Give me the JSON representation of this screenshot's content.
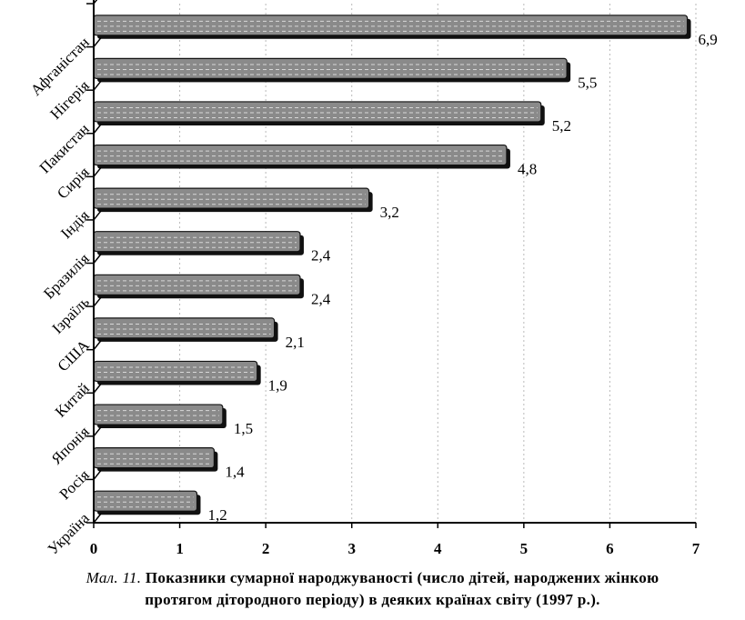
{
  "chart_data": {
    "type": "bar",
    "orientation": "horizontal",
    "categories": [
      "Афганістан",
      "Нігерія",
      "Пакистан",
      "Сирія",
      "Індія",
      "Бразилія",
      "Ізраїль",
      "США",
      "Китай",
      "Японія",
      "Росія",
      "Україна"
    ],
    "values": [
      6.9,
      5.5,
      5.2,
      4.8,
      3.2,
      2.4,
      2.4,
      2.1,
      1.9,
      1.5,
      1.4,
      1.2
    ],
    "value_labels": [
      "6,9",
      "5,5",
      "5,2",
      "4,8",
      "3,2",
      "2,4",
      "2,4",
      "2,1",
      "1,9",
      "1,5",
      "1,4",
      "1,2"
    ],
    "x_ticks": [
      "0",
      "1",
      "2",
      "3",
      "4",
      "5",
      "6",
      "7"
    ],
    "xlim": [
      0,
      7
    ],
    "grid": true,
    "title": "",
    "xlabel": "",
    "ylabel": "",
    "bar_color": "#8a8a8a",
    "shadow_color": "#111111"
  },
  "caption": {
    "figure_number": "Мал. 11.",
    "text_line1": "Показники сумарної народжуваності (число дітей, народжених жінкою",
    "text_line2": "протягом дітородного періоду) в деяких країнах світу (1997 р.)."
  }
}
